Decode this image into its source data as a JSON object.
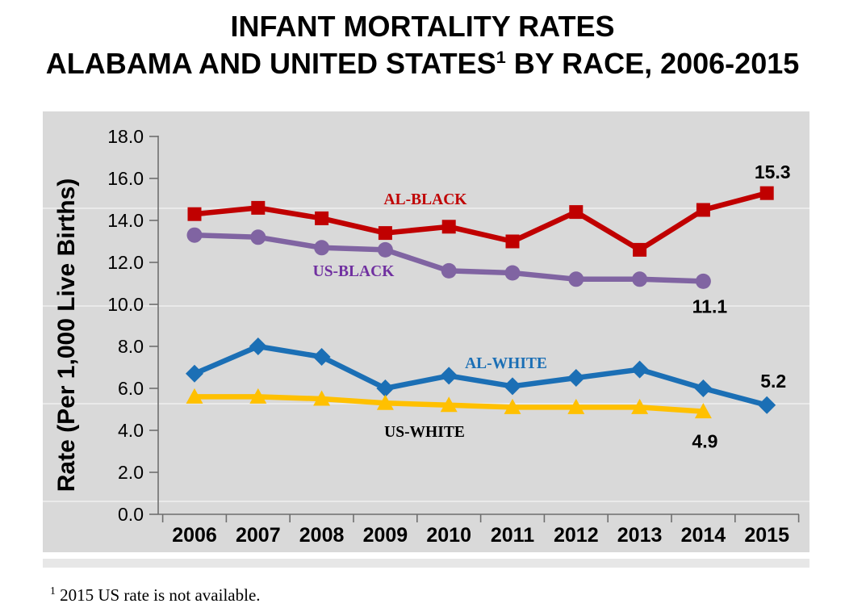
{
  "title": {
    "line1": "INFANT MORTALITY RATES",
    "line2_pre": "ALABAMA AND UNITED STATES",
    "line2_sup": "1",
    "line2_post": " BY RACE, 2006-2015"
  },
  "footnote": {
    "sup": "1",
    "text": " 2015 US rate is not available."
  },
  "chart_data": {
    "type": "line",
    "title": "INFANT MORTALITY RATES ALABAMA AND UNITED STATES BY RACE, 2006-2015",
    "xlabel": "",
    "ylabel": "Rate (Per 1,000 Live Births)",
    "ylim": [
      0.0,
      18.0
    ],
    "ytick_step": 2.0,
    "ytick_labels": [
      "0.0",
      "2.0",
      "4.0",
      "6.0",
      "8.0",
      "10.0",
      "12.0",
      "14.0",
      "16.0",
      "18.0"
    ],
    "grid": false,
    "plot_background": "#D9D9D9",
    "axis_color": "#6E6E6E",
    "legend_position": "inline-labels",
    "categories": [
      "2006",
      "2007",
      "2008",
      "2009",
      "2010",
      "2011",
      "2012",
      "2013",
      "2014",
      "2015"
    ],
    "series": [
      {
        "name": "AL-BLACK",
        "color": "#C00000",
        "label_color": "#C00000",
        "marker": "square",
        "values": [
          14.3,
          14.6,
          14.1,
          13.4,
          13.7,
          13.0,
          14.4,
          12.6,
          14.5,
          15.3
        ]
      },
      {
        "name": "US-BLACK",
        "color": "#8064A2",
        "label_color": "#7030A0",
        "marker": "circle",
        "values": [
          13.3,
          13.2,
          12.7,
          12.6,
          11.6,
          11.5,
          11.2,
          11.2,
          11.1,
          null
        ]
      },
      {
        "name": "AL-WHITE",
        "color": "#1B6FB5",
        "label_color": "#1B6FB5",
        "marker": "diamond",
        "values": [
          6.7,
          8.0,
          7.5,
          6.0,
          6.6,
          6.1,
          6.5,
          6.9,
          6.0,
          5.2
        ]
      },
      {
        "name": "US-WHITE",
        "color": "#FFC000",
        "label_color": "#000000",
        "marker": "triangle",
        "values": [
          5.6,
          5.6,
          5.5,
          5.3,
          5.2,
          5.1,
          5.1,
          5.1,
          4.9,
          null
        ]
      }
    ],
    "annotations": [
      {
        "text": "15.3",
        "series": "AL-BLACK",
        "category": "2015"
      },
      {
        "text": "11.1",
        "series": "US-BLACK",
        "category": "2014"
      },
      {
        "text": "5.2",
        "series": "AL-WHITE",
        "category": "2015"
      },
      {
        "text": "4.9",
        "series": "US-WHITE",
        "category": "2014"
      }
    ]
  }
}
